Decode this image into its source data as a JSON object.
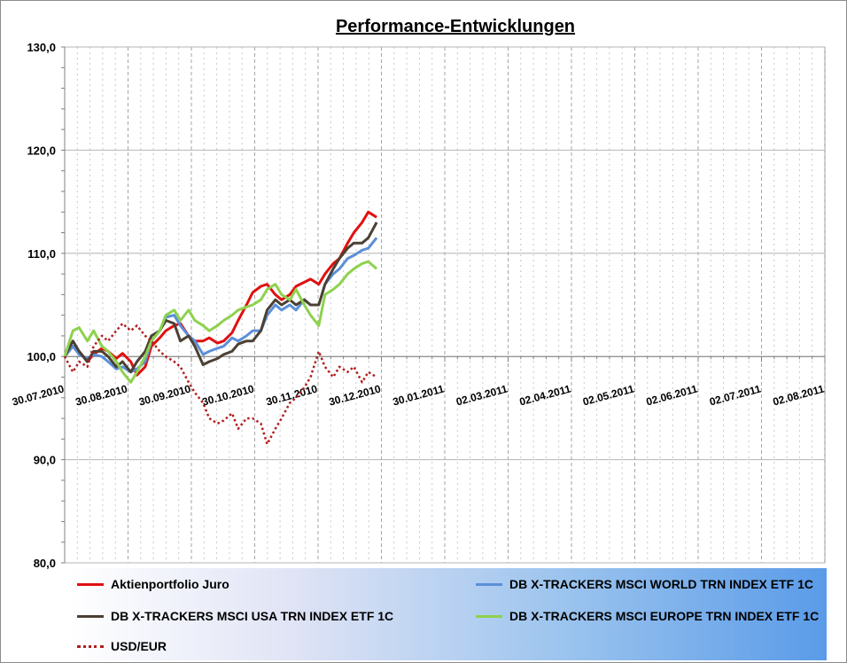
{
  "chart_data": {
    "type": "line",
    "title": "Performance-Entwicklungen",
    "y_ticks": [
      "80,0",
      "90,0",
      "100,0",
      "110,0",
      "120,0",
      "130,0"
    ],
    "ylim": [
      80,
      130
    ],
    "x_tick_labels": [
      "30.07.2010",
      "30.08.2010",
      "30.09.2010",
      "30.10.2010",
      "30.11.2010",
      "30.12.2010",
      "30.01.2011",
      "02.03.2011",
      "02.04.2011",
      "02.05.2011",
      "02.06.2011",
      "02.07.2011",
      "02.08.2011"
    ],
    "x_range": [
      "2010-07-30",
      "2011-08-02"
    ],
    "grid": true,
    "legend_position": "bottom",
    "series": [
      {
        "name": "Aktienportfolio Juro",
        "color": "#e01010",
        "style": "solid",
        "points": [
          [
            "2010-07-30",
            100.0
          ],
          [
            "2010-08-03",
            101.0
          ],
          [
            "2010-08-06",
            100.5
          ],
          [
            "2010-08-10",
            99.5
          ],
          [
            "2010-08-13",
            100.2
          ],
          [
            "2010-08-17",
            100.8
          ],
          [
            "2010-08-20",
            100.5
          ],
          [
            "2010-08-24",
            99.8
          ],
          [
            "2010-08-27",
            100.3
          ],
          [
            "2010-08-31",
            99.5
          ],
          [
            "2010-09-03",
            98.2
          ],
          [
            "2010-09-07",
            99.0
          ],
          [
            "2010-09-10",
            101.0
          ],
          [
            "2010-09-14",
            101.8
          ],
          [
            "2010-09-17",
            102.5
          ],
          [
            "2010-09-21",
            103.0
          ],
          [
            "2010-09-24",
            103.2
          ],
          [
            "2010-09-28",
            102.0
          ],
          [
            "2010-10-01",
            101.5
          ],
          [
            "2010-10-05",
            101.5
          ],
          [
            "2010-10-08",
            101.8
          ],
          [
            "2010-10-12",
            101.3
          ],
          [
            "2010-10-15",
            101.5
          ],
          [
            "2010-10-19",
            102.3
          ],
          [
            "2010-10-22",
            103.5
          ],
          [
            "2010-10-26",
            105.0
          ],
          [
            "2010-10-29",
            106.2
          ],
          [
            "2010-11-02",
            106.8
          ],
          [
            "2010-11-05",
            107.0
          ],
          [
            "2010-11-09",
            106.0
          ],
          [
            "2010-11-12",
            105.5
          ],
          [
            "2010-11-16",
            106.0
          ],
          [
            "2010-11-19",
            106.8
          ],
          [
            "2010-11-23",
            107.2
          ],
          [
            "2010-11-26",
            107.5
          ],
          [
            "2010-11-30",
            107.0
          ],
          [
            "2010-12-03",
            108.0
          ],
          [
            "2010-12-07",
            109.0
          ],
          [
            "2010-12-10",
            109.5
          ],
          [
            "2010-12-14",
            111.0
          ],
          [
            "2010-12-17",
            112.0
          ],
          [
            "2010-12-21",
            113.0
          ],
          [
            "2010-12-24",
            114.0
          ],
          [
            "2010-12-28",
            113.5
          ]
        ]
      },
      {
        "name": "DB X-TRACKERS  MSCI WORLD TRN INDEX ETF 1C",
        "color": "#5b8fd8",
        "style": "solid",
        "points": [
          [
            "2010-07-30",
            100.0
          ],
          [
            "2010-08-03",
            101.0
          ],
          [
            "2010-08-06",
            100.2
          ],
          [
            "2010-08-10",
            99.8
          ],
          [
            "2010-08-13",
            100.2
          ],
          [
            "2010-08-17",
            100.0
          ],
          [
            "2010-08-20",
            99.5
          ],
          [
            "2010-08-24",
            98.8
          ],
          [
            "2010-08-27",
            99.0
          ],
          [
            "2010-08-31",
            98.5
          ],
          [
            "2010-09-03",
            98.8
          ],
          [
            "2010-09-07",
            99.5
          ],
          [
            "2010-09-10",
            101.5
          ],
          [
            "2010-09-14",
            102.5
          ],
          [
            "2010-09-17",
            103.8
          ],
          [
            "2010-09-21",
            104.0
          ],
          [
            "2010-09-24",
            103.0
          ],
          [
            "2010-09-28",
            102.0
          ],
          [
            "2010-10-01",
            101.5
          ],
          [
            "2010-10-05",
            100.2
          ],
          [
            "2010-10-08",
            100.5
          ],
          [
            "2010-10-12",
            100.8
          ],
          [
            "2010-10-15",
            101.0
          ],
          [
            "2010-10-19",
            101.8
          ],
          [
            "2010-10-22",
            101.5
          ],
          [
            "2010-10-26",
            102.0
          ],
          [
            "2010-10-29",
            102.5
          ],
          [
            "2010-11-02",
            102.5
          ],
          [
            "2010-11-05",
            104.0
          ],
          [
            "2010-11-09",
            105.0
          ],
          [
            "2010-11-12",
            104.5
          ],
          [
            "2010-11-16",
            105.0
          ],
          [
            "2010-11-19",
            104.5
          ],
          [
            "2010-11-23",
            105.5
          ],
          [
            "2010-11-26",
            105.0
          ],
          [
            "2010-11-30",
            105.0
          ],
          [
            "2010-12-03",
            107.0
          ],
          [
            "2010-12-07",
            108.0
          ],
          [
            "2010-12-10",
            108.5
          ],
          [
            "2010-12-14",
            109.5
          ],
          [
            "2010-12-17",
            109.8
          ],
          [
            "2010-12-21",
            110.3
          ],
          [
            "2010-12-24",
            110.5
          ],
          [
            "2010-12-28",
            111.5
          ]
        ]
      },
      {
        "name": "DB X-TRACKERS  MSCI USA TRN INDEX ETF 1C",
        "color": "#4a4033",
        "style": "solid",
        "points": [
          [
            "2010-07-30",
            100.0
          ],
          [
            "2010-08-03",
            101.5
          ],
          [
            "2010-08-06",
            100.5
          ],
          [
            "2010-08-10",
            99.5
          ],
          [
            "2010-08-13",
            100.5
          ],
          [
            "2010-08-17",
            100.5
          ],
          [
            "2010-08-20",
            100.0
          ],
          [
            "2010-08-24",
            99.0
          ],
          [
            "2010-08-27",
            99.5
          ],
          [
            "2010-08-31",
            98.5
          ],
          [
            "2010-09-03",
            99.5
          ],
          [
            "2010-09-07",
            100.5
          ],
          [
            "2010-09-10",
            102.0
          ],
          [
            "2010-09-14",
            102.5
          ],
          [
            "2010-09-17",
            103.5
          ],
          [
            "2010-09-21",
            103.2
          ],
          [
            "2010-09-24",
            101.5
          ],
          [
            "2010-09-28",
            102.0
          ],
          [
            "2010-10-01",
            101.0
          ],
          [
            "2010-10-05",
            99.2
          ],
          [
            "2010-10-08",
            99.5
          ],
          [
            "2010-10-12",
            99.8
          ],
          [
            "2010-10-15",
            100.2
          ],
          [
            "2010-10-19",
            100.5
          ],
          [
            "2010-10-22",
            101.2
          ],
          [
            "2010-10-26",
            101.5
          ],
          [
            "2010-10-29",
            101.5
          ],
          [
            "2010-11-02",
            102.5
          ],
          [
            "2010-11-05",
            104.5
          ],
          [
            "2010-11-09",
            105.5
          ],
          [
            "2010-11-12",
            105.0
          ],
          [
            "2010-11-16",
            105.5
          ],
          [
            "2010-11-19",
            105.0
          ],
          [
            "2010-11-23",
            105.5
          ],
          [
            "2010-11-26",
            105.0
          ],
          [
            "2010-11-30",
            105.0
          ],
          [
            "2010-12-03",
            107.0
          ],
          [
            "2010-12-07",
            108.5
          ],
          [
            "2010-12-10",
            109.5
          ],
          [
            "2010-12-14",
            110.5
          ],
          [
            "2010-12-17",
            111.0
          ],
          [
            "2010-12-21",
            111.0
          ],
          [
            "2010-12-24",
            111.5
          ],
          [
            "2010-12-28",
            113.0
          ]
        ]
      },
      {
        "name": "DB X-TRACKERS  MSCI EUROPE TRN INDEX ETF 1C",
        "color": "#8ed24e",
        "style": "solid",
        "points": [
          [
            "2010-07-30",
            100.0
          ],
          [
            "2010-08-03",
            102.5
          ],
          [
            "2010-08-06",
            102.8
          ],
          [
            "2010-08-10",
            101.5
          ],
          [
            "2010-08-13",
            102.5
          ],
          [
            "2010-08-17",
            101.0
          ],
          [
            "2010-08-20",
            100.5
          ],
          [
            "2010-08-24",
            99.5
          ],
          [
            "2010-08-27",
            98.5
          ],
          [
            "2010-08-31",
            97.5
          ],
          [
            "2010-09-03",
            98.5
          ],
          [
            "2010-09-07",
            100.0
          ],
          [
            "2010-09-10",
            101.5
          ],
          [
            "2010-09-14",
            102.5
          ],
          [
            "2010-09-17",
            104.0
          ],
          [
            "2010-09-21",
            104.5
          ],
          [
            "2010-09-24",
            103.5
          ],
          [
            "2010-09-28",
            104.5
          ],
          [
            "2010-10-01",
            103.5
          ],
          [
            "2010-10-05",
            103.0
          ],
          [
            "2010-10-08",
            102.5
          ],
          [
            "2010-10-12",
            103.0
          ],
          [
            "2010-10-15",
            103.5
          ],
          [
            "2010-10-19",
            104.0
          ],
          [
            "2010-10-22",
            104.5
          ],
          [
            "2010-10-26",
            104.8
          ],
          [
            "2010-10-29",
            105.0
          ],
          [
            "2010-11-02",
            105.5
          ],
          [
            "2010-11-05",
            106.5
          ],
          [
            "2010-11-09",
            107.0
          ],
          [
            "2010-11-12",
            106.0
          ],
          [
            "2010-11-16",
            105.5
          ],
          [
            "2010-11-19",
            106.5
          ],
          [
            "2010-11-23",
            105.0
          ],
          [
            "2010-11-26",
            104.0
          ],
          [
            "2010-11-30",
            103.0
          ],
          [
            "2010-12-03",
            106.0
          ],
          [
            "2010-12-07",
            106.5
          ],
          [
            "2010-12-10",
            107.0
          ],
          [
            "2010-12-14",
            108.0
          ],
          [
            "2010-12-17",
            108.5
          ],
          [
            "2010-12-21",
            109.0
          ],
          [
            "2010-12-24",
            109.2
          ],
          [
            "2010-12-28",
            108.5
          ]
        ]
      },
      {
        "name": "USD/EUR",
        "color": "#b21d1d",
        "style": "dotted",
        "points": [
          [
            "2010-07-30",
            100.0
          ],
          [
            "2010-08-03",
            98.5
          ],
          [
            "2010-08-06",
            99.5
          ],
          [
            "2010-08-10",
            99.0
          ],
          [
            "2010-08-13",
            101.0
          ],
          [
            "2010-08-17",
            102.0
          ],
          [
            "2010-08-20",
            101.5
          ],
          [
            "2010-08-24",
            102.5
          ],
          [
            "2010-08-27",
            103.2
          ],
          [
            "2010-08-31",
            102.5
          ],
          [
            "2010-09-03",
            103.0
          ],
          [
            "2010-09-07",
            102.0
          ],
          [
            "2010-09-10",
            101.5
          ],
          [
            "2010-09-14",
            100.5
          ],
          [
            "2010-09-17",
            100.0
          ],
          [
            "2010-09-21",
            99.5
          ],
          [
            "2010-09-24",
            99.0
          ],
          [
            "2010-09-28",
            97.5
          ],
          [
            "2010-10-01",
            96.5
          ],
          [
            "2010-10-05",
            95.5
          ],
          [
            "2010-10-08",
            94.0
          ],
          [
            "2010-10-12",
            93.5
          ],
          [
            "2010-10-15",
            93.8
          ],
          [
            "2010-10-19",
            94.5
          ],
          [
            "2010-10-22",
            93.0
          ],
          [
            "2010-10-26",
            94.0
          ],
          [
            "2010-10-29",
            94.0
          ],
          [
            "2010-11-02",
            93.5
          ],
          [
            "2010-11-05",
            91.5
          ],
          [
            "2010-11-09",
            93.0
          ],
          [
            "2010-11-12",
            94.0
          ],
          [
            "2010-11-16",
            95.5
          ],
          [
            "2010-11-19",
            96.0
          ],
          [
            "2010-11-23",
            97.0
          ],
          [
            "2010-11-26",
            98.0
          ],
          [
            "2010-11-30",
            100.5
          ],
          [
            "2010-12-03",
            99.0
          ],
          [
            "2010-12-07",
            98.0
          ],
          [
            "2010-12-10",
            99.0
          ],
          [
            "2010-12-14",
            98.5
          ],
          [
            "2010-12-17",
            99.0
          ],
          [
            "2010-12-21",
            97.5
          ],
          [
            "2010-12-24",
            98.5
          ],
          [
            "2010-12-28",
            98.0
          ]
        ]
      }
    ]
  }
}
